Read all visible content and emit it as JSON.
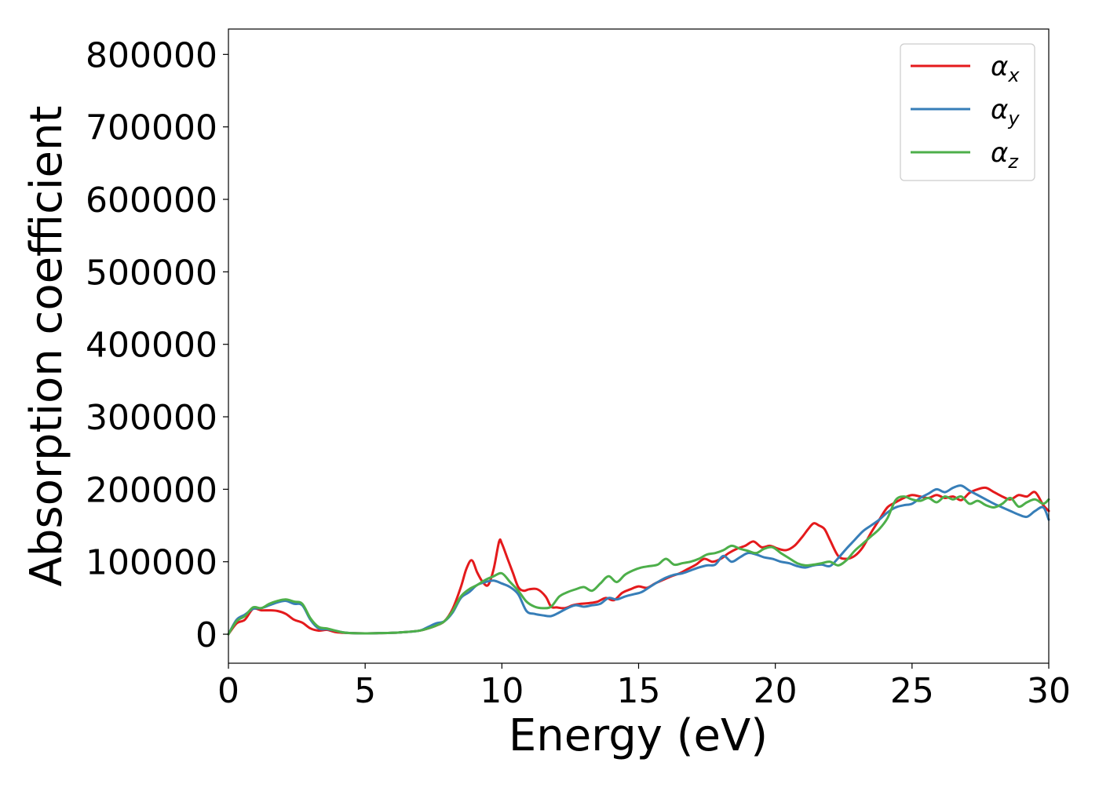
{
  "chart_data": {
    "type": "line",
    "title": "",
    "xlabel": "Energy (eV)",
    "ylabel": "Absorption coefficient",
    "xlim": [
      0,
      30
    ],
    "ylim": [
      -40000,
      835000
    ],
    "xticks": [
      0,
      5,
      10,
      15,
      20,
      25,
      30
    ],
    "xtick_labels": [
      "0",
      "5",
      "10",
      "15",
      "20",
      "25",
      "30"
    ],
    "yticks": [
      0,
      100000,
      200000,
      300000,
      400000,
      500000,
      600000,
      700000,
      800000
    ],
    "ytick_labels": [
      "0",
      "100000",
      "200000",
      "300000",
      "400000",
      "500000",
      "600000",
      "700000",
      "800000"
    ],
    "grid": false,
    "legend_position": "top-right",
    "series": [
      {
        "name": "αx",
        "label_main": "α",
        "label_sub": "x",
        "color": "#e41a1c",
        "x": [
          0,
          0.3,
          0.6,
          0.9,
          1.2,
          1.5,
          1.8,
          2.1,
          2.4,
          2.7,
          3.0,
          3.3,
          3.6,
          3.9,
          4.2,
          4.5,
          5.0,
          5.5,
          6.0,
          6.5,
          7.0,
          7.3,
          7.6,
          7.9,
          8.2,
          8.5,
          8.7,
          8.9,
          9.1,
          9.3,
          9.5,
          9.7,
          9.9,
          10.0,
          10.2,
          10.4,
          10.6,
          10.8,
          11.0,
          11.3,
          11.6,
          11.8,
          12.0,
          12.3,
          12.6,
          12.9,
          13.2,
          13.5,
          13.8,
          14.1,
          14.4,
          14.7,
          15.0,
          15.3,
          15.6,
          15.9,
          16.2,
          16.5,
          16.8,
          17.1,
          17.4,
          17.7,
          18.0,
          18.3,
          18.6,
          18.9,
          19.2,
          19.5,
          19.8,
          20.1,
          20.4,
          20.7,
          21.0,
          21.2,
          21.4,
          21.6,
          21.8,
          22.0,
          22.3,
          22.6,
          22.9,
          23.2,
          23.5,
          23.8,
          24.1,
          24.4,
          24.7,
          25.0,
          25.3,
          25.6,
          25.9,
          26.2,
          26.5,
          26.8,
          27.1,
          27.4,
          27.7,
          28.0,
          28.3,
          28.6,
          28.9,
          29.2,
          29.5,
          29.8,
          30.0
        ],
        "y": [
          0,
          15000,
          20000,
          35000,
          33000,
          33000,
          32000,
          28000,
          20000,
          16000,
          8000,
          5000,
          6000,
          3000,
          2000,
          1500,
          1200,
          1500,
          2000,
          3000,
          5000,
          8000,
          12000,
          18000,
          35000,
          65000,
          90000,
          102000,
          85000,
          72000,
          68000,
          90000,
          128000,
          125000,
          105000,
          85000,
          65000,
          60000,
          62000,
          62000,
          52000,
          38000,
          37000,
          36000,
          40000,
          42000,
          43000,
          45000,
          50000,
          47000,
          57000,
          62000,
          66000,
          64000,
          70000,
          75000,
          80000,
          84000,
          90000,
          96000,
          104000,
          100000,
          104000,
          112000,
          118000,
          122000,
          128000,
          120000,
          122000,
          118000,
          116000,
          122000,
          135000,
          145000,
          153000,
          150000,
          145000,
          130000,
          108000,
          104000,
          108000,
          120000,
          140000,
          158000,
          175000,
          182000,
          188000,
          192000,
          190000,
          188000,
          192000,
          188000,
          190000,
          185000,
          195000,
          200000,
          202000,
          196000,
          190000,
          186000,
          192000,
          190000,
          196000,
          178000,
          170000
        ]
      },
      {
        "name": "αy",
        "label_main": "α",
        "label_sub": "y",
        "color": "#377eb8",
        "x": [
          0,
          0.3,
          0.6,
          0.9,
          1.2,
          1.5,
          1.8,
          2.1,
          2.4,
          2.7,
          3.0,
          3.3,
          3.6,
          3.9,
          4.2,
          4.5,
          5.0,
          5.5,
          6.0,
          6.5,
          7.0,
          7.3,
          7.6,
          7.9,
          8.2,
          8.5,
          8.8,
          9.1,
          9.4,
          9.7,
          10.0,
          10.3,
          10.6,
          10.9,
          11.2,
          11.5,
          11.8,
          12.1,
          12.4,
          12.7,
          13.0,
          13.3,
          13.6,
          13.9,
          14.2,
          14.5,
          14.8,
          15.1,
          15.4,
          15.7,
          16.0,
          16.3,
          16.6,
          16.9,
          17.2,
          17.5,
          17.8,
          18.1,
          18.4,
          18.7,
          19.0,
          19.3,
          19.6,
          19.9,
          20.2,
          20.5,
          20.8,
          21.1,
          21.4,
          21.7,
          22.0,
          22.3,
          22.6,
          22.9,
          23.2,
          23.5,
          23.8,
          24.1,
          24.4,
          24.7,
          25.0,
          25.3,
          25.6,
          25.9,
          26.2,
          26.5,
          26.8,
          27.1,
          27.4,
          27.7,
          28.0,
          28.3,
          28.6,
          28.9,
          29.2,
          29.5,
          29.8,
          30.0
        ],
        "y": [
          0,
          20000,
          27000,
          35000,
          36000,
          40000,
          44000,
          46000,
          42000,
          40000,
          20000,
          8000,
          7000,
          5000,
          2500,
          1500,
          1200,
          1500,
          2000,
          3000,
          5000,
          10000,
          15000,
          18000,
          30000,
          50000,
          58000,
          68000,
          72000,
          74000,
          70000,
          65000,
          55000,
          32000,
          28000,
          26000,
          25000,
          30000,
          36000,
          40000,
          38000,
          40000,
          42000,
          50000,
          48000,
          52000,
          55000,
          58000,
          65000,
          72000,
          78000,
          82000,
          84000,
          88000,
          92000,
          95000,
          96000,
          108000,
          100000,
          106000,
          112000,
          110000,
          106000,
          104000,
          100000,
          98000,
          94000,
          92000,
          95000,
          96000,
          94000,
          105000,
          118000,
          130000,
          142000,
          150000,
          158000,
          168000,
          175000,
          178000,
          180000,
          188000,
          194000,
          200000,
          196000,
          202000,
          205000,
          198000,
          192000,
          186000,
          180000,
          175000,
          170000,
          165000,
          162000,
          170000,
          175000,
          158000
        ]
      },
      {
        "name": "αz",
        "label_main": "α",
        "label_sub": "z",
        "color": "#4daf4a",
        "x": [
          0,
          0.3,
          0.6,
          0.9,
          1.2,
          1.5,
          1.8,
          2.1,
          2.4,
          2.7,
          3.0,
          3.3,
          3.6,
          3.9,
          4.2,
          4.5,
          5.0,
          5.5,
          6.0,
          6.5,
          7.0,
          7.3,
          7.6,
          7.9,
          8.2,
          8.5,
          8.8,
          9.1,
          9.4,
          9.7,
          10.0,
          10.3,
          10.6,
          10.9,
          11.2,
          11.5,
          11.8,
          12.1,
          12.4,
          12.7,
          13.0,
          13.3,
          13.6,
          13.9,
          14.2,
          14.5,
          14.8,
          15.1,
          15.4,
          15.7,
          16.0,
          16.3,
          16.6,
          16.9,
          17.2,
          17.5,
          17.8,
          18.1,
          18.4,
          18.7,
          19.0,
          19.3,
          19.6,
          19.9,
          20.2,
          20.5,
          20.8,
          21.1,
          21.4,
          21.7,
          22.0,
          22.3,
          22.6,
          22.9,
          23.2,
          23.5,
          23.8,
          24.1,
          24.4,
          24.7,
          25.0,
          25.3,
          25.6,
          25.9,
          26.2,
          26.5,
          26.8,
          27.1,
          27.4,
          27.7,
          28.0,
          28.3,
          28.6,
          28.9,
          29.2,
          29.5,
          29.8,
          30.0
        ],
        "y": [
          0,
          18000,
          25000,
          37000,
          36000,
          42000,
          46000,
          48000,
          45000,
          42000,
          22000,
          10000,
          8000,
          5000,
          2500,
          1500,
          1200,
          1500,
          2000,
          3000,
          5000,
          8000,
          12000,
          18000,
          32000,
          52000,
          62000,
          68000,
          75000,
          80000,
          84000,
          72000,
          60000,
          45000,
          38000,
          36000,
          38000,
          52000,
          58000,
          62000,
          65000,
          60000,
          70000,
          80000,
          72000,
          82000,
          88000,
          92000,
          94000,
          96000,
          104000,
          96000,
          98000,
          100000,
          104000,
          110000,
          112000,
          116000,
          122000,
          118000,
          115000,
          112000,
          118000,
          120000,
          112000,
          105000,
          98000,
          95000,
          96000,
          98000,
          100000,
          95000,
          102000,
          115000,
          125000,
          135000,
          145000,
          160000,
          185000,
          190000,
          186000,
          184000,
          188000,
          182000,
          190000,
          186000,
          190000,
          180000,
          184000,
          178000,
          175000,
          180000,
          188000,
          176000,
          182000,
          186000,
          180000,
          186000
        ]
      }
    ]
  }
}
